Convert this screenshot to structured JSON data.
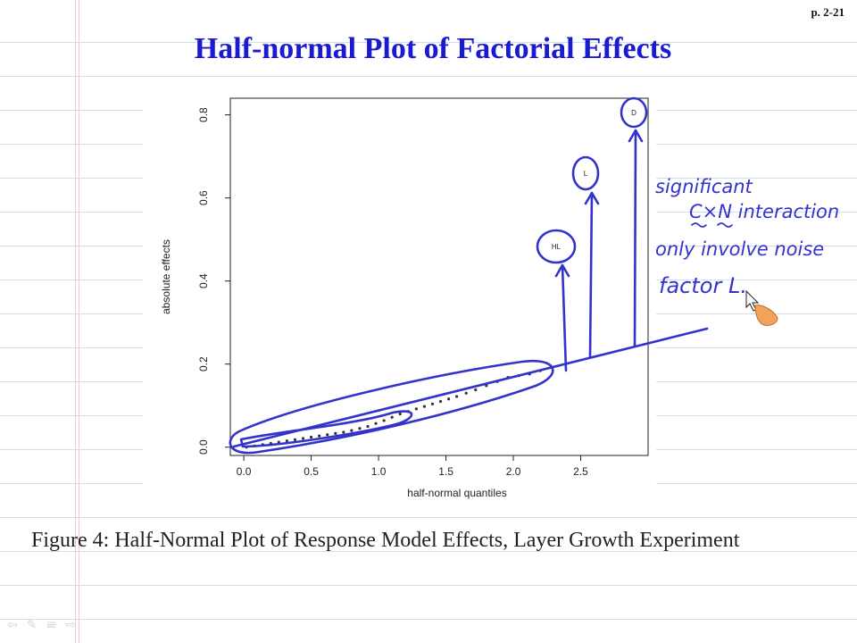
{
  "page_number": "p. 2-21",
  "title": "Half-normal Plot of Factorial Effects",
  "caption": "Figure 4:  Half-Normal Plot of Response Model Effects, Layer Growth Experiment",
  "handwritten_notes": {
    "line1": "significant",
    "line2": "C×N interaction",
    "line3": "only involve noise",
    "line4": "factor L."
  },
  "colors": {
    "title": "#1a1ad0",
    "ink": "#3333cc",
    "points": "#333333"
  },
  "toolbar_icons": [
    "back-icon",
    "pen-icon",
    "menu-icon",
    "forward-icon"
  ],
  "chart_data": {
    "type": "scatter",
    "title": "",
    "xlabel": "half-normal quantiles",
    "ylabel": "absolute effects",
    "xlim": [
      -0.1,
      3.0
    ],
    "ylim": [
      -0.02,
      0.84
    ],
    "x_ticks": [
      "0.0",
      "0.5",
      "1.0",
      "1.5",
      "2.0",
      "2.5"
    ],
    "x_tick_values": [
      0.0,
      0.5,
      1.0,
      1.5,
      2.0,
      2.5
    ],
    "y_ticks": [
      "0.0",
      "0.2",
      "0.4",
      "0.6",
      "0.8"
    ],
    "y_tick_values": [
      0.0,
      0.2,
      0.4,
      0.6,
      0.8
    ],
    "grid": false,
    "points": [
      {
        "x": 0.02,
        "y": 0.0
      },
      {
        "x": 0.08,
        "y": 0.003
      },
      {
        "x": 0.14,
        "y": 0.006
      },
      {
        "x": 0.2,
        "y": 0.009
      },
      {
        "x": 0.26,
        "y": 0.012
      },
      {
        "x": 0.32,
        "y": 0.015
      },
      {
        "x": 0.38,
        "y": 0.018
      },
      {
        "x": 0.44,
        "y": 0.021
      },
      {
        "x": 0.5,
        "y": 0.024
      },
      {
        "x": 0.56,
        "y": 0.027
      },
      {
        "x": 0.62,
        "y": 0.03
      },
      {
        "x": 0.68,
        "y": 0.033
      },
      {
        "x": 0.74,
        "y": 0.036
      },
      {
        "x": 0.8,
        "y": 0.04
      },
      {
        "x": 0.86,
        "y": 0.045
      },
      {
        "x": 0.92,
        "y": 0.05
      },
      {
        "x": 0.98,
        "y": 0.057
      },
      {
        "x": 1.04,
        "y": 0.064
      },
      {
        "x": 1.1,
        "y": 0.072
      },
      {
        "x": 1.16,
        "y": 0.08
      },
      {
        "x": 1.22,
        "y": 0.086
      },
      {
        "x": 1.28,
        "y": 0.092
      },
      {
        "x": 1.34,
        "y": 0.098
      },
      {
        "x": 1.4,
        "y": 0.104
      },
      {
        "x": 1.46,
        "y": 0.11
      },
      {
        "x": 1.52,
        "y": 0.116
      },
      {
        "x": 1.58,
        "y": 0.122
      },
      {
        "x": 1.65,
        "y": 0.13
      },
      {
        "x": 1.72,
        "y": 0.138
      },
      {
        "x": 1.8,
        "y": 0.148
      },
      {
        "x": 1.88,
        "y": 0.158
      },
      {
        "x": 1.96,
        "y": 0.168
      },
      {
        "x": 2.04,
        "y": 0.172
      },
      {
        "x": 2.12,
        "y": 0.176
      },
      {
        "x": 2.2,
        "y": 0.184
      }
    ],
    "labeled_points": [
      {
        "label": "HL",
        "x": 2.38,
        "y": 0.48
      },
      {
        "label": "L",
        "x": 2.56,
        "y": 0.65
      },
      {
        "label": "D",
        "x": 2.88,
        "y": 0.8
      }
    ]
  }
}
